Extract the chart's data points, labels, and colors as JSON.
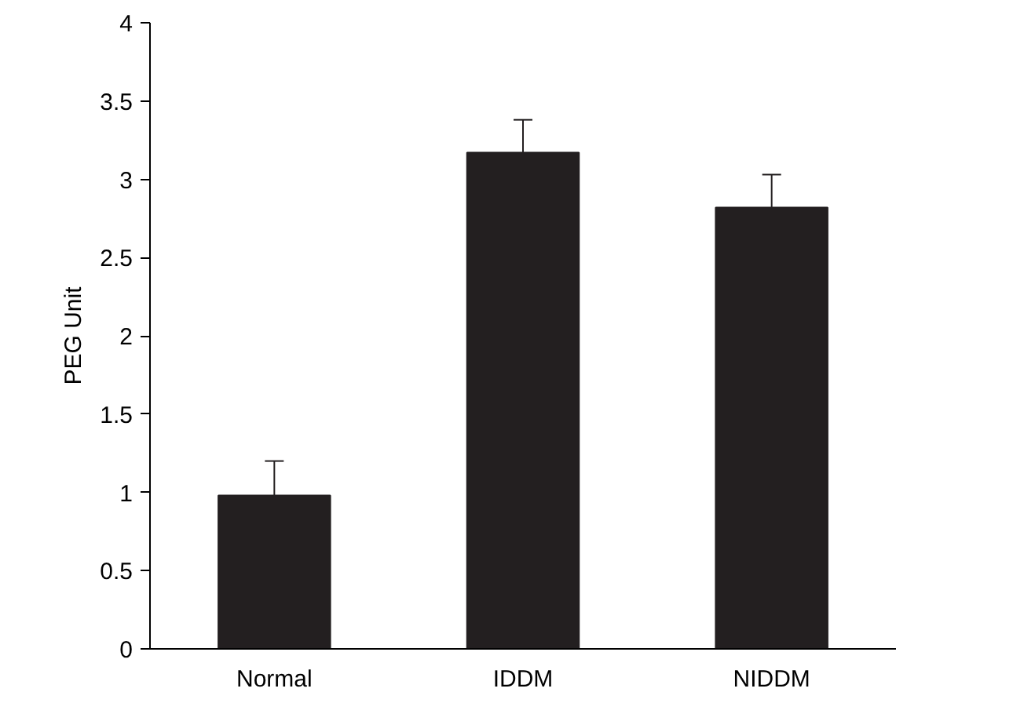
{
  "chart_data": {
    "type": "bar",
    "ylabel": "PEG Unit",
    "categories": [
      "Normal",
      "IDDM",
      "NIDDM"
    ],
    "values": [
      0.98,
      3.17,
      2.82
    ],
    "errors": [
      0.22,
      0.21,
      0.21
    ],
    "color": "#231f20",
    "ylim": [
      0,
      4
    ],
    "yticks": [
      0,
      0.5,
      1,
      1.5,
      2,
      2.5,
      3,
      3.5,
      4
    ],
    "grid": false
  }
}
